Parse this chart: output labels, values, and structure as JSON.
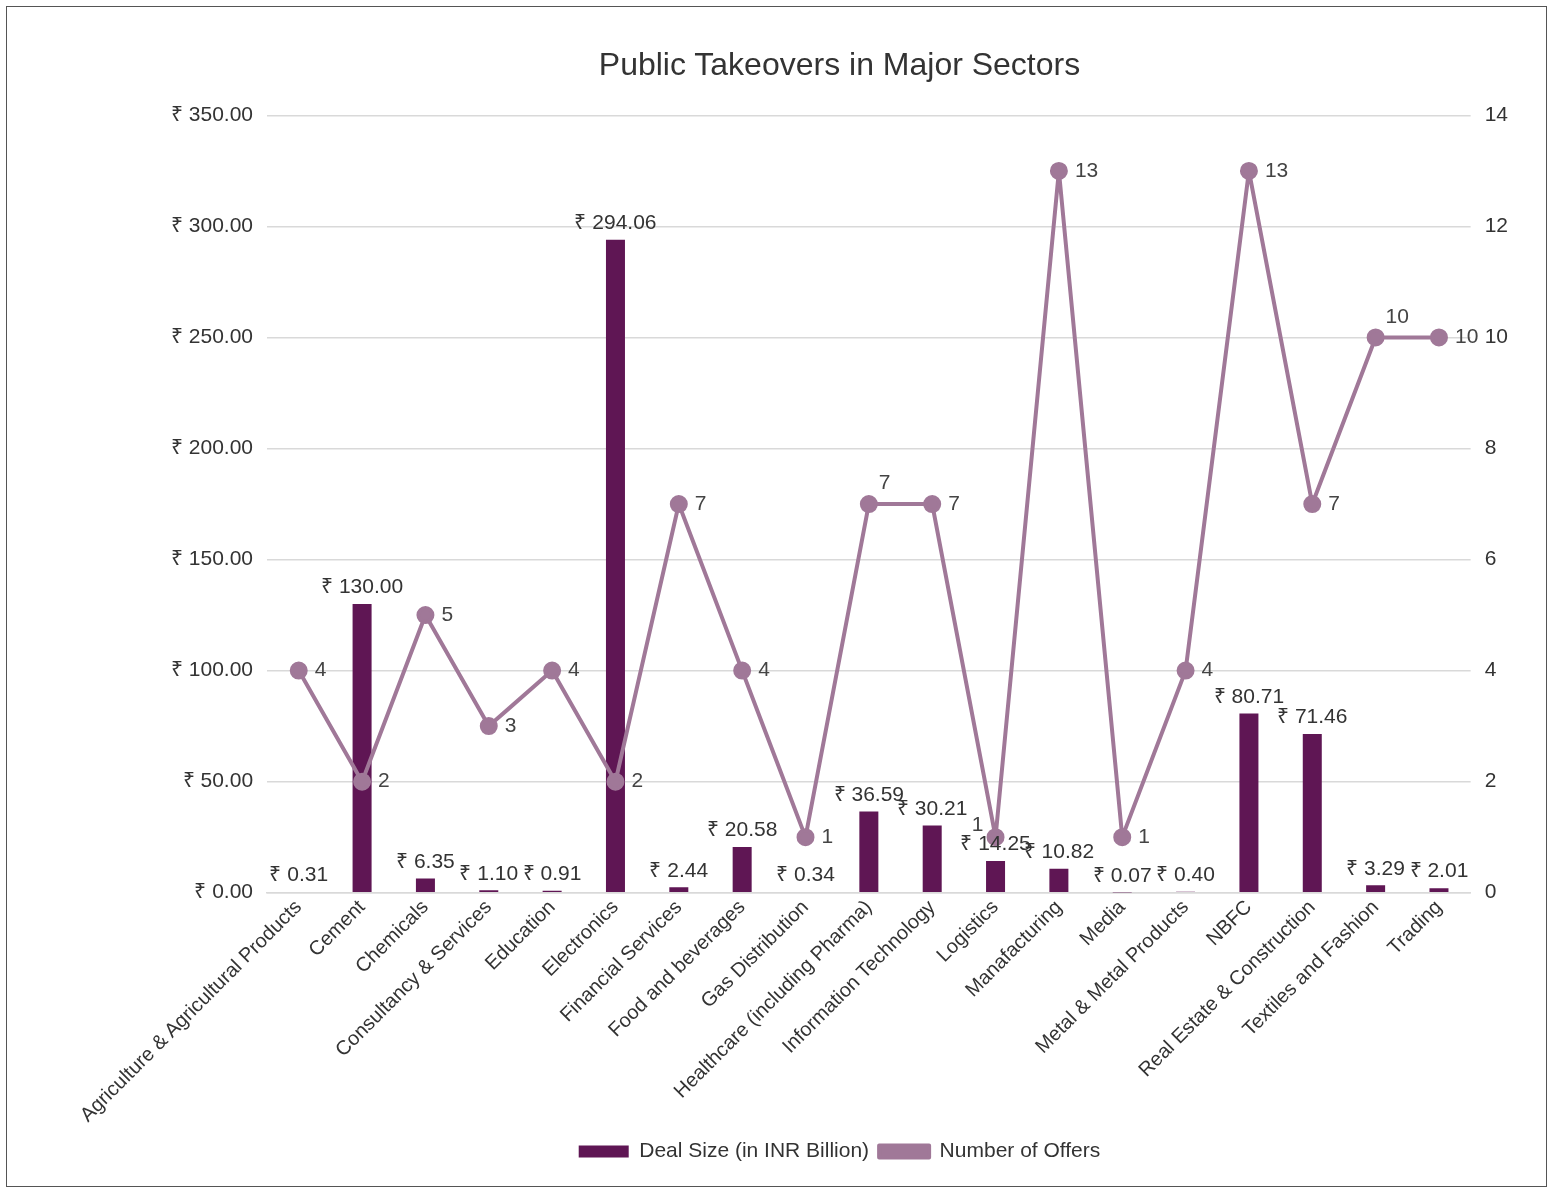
{
  "chart_data": {
    "type": "bar",
    "title": "Public Takeovers in Major Sectors",
    "categories": [
      "Agriculture & Agricultural Products",
      "Cement",
      "Chemicals",
      "Consultancy & Services",
      "Education",
      "Electronics",
      "Financial Services",
      "Food and beverages",
      "Gas Distribution",
      "Healthcare (including Pharma)",
      "Information Technology",
      "Logistics",
      "Manafacturing",
      "Media",
      "Metal & Metal Products",
      "NBFC",
      "Real Estate & Construction",
      "Textiles and Fashion",
      "Trading"
    ],
    "series": [
      {
        "name": "Deal Size (in INR Billion)",
        "color": "#5f1654",
        "values": [
          0.31,
          130.0,
          6.35,
          1.1,
          0.91,
          294.06,
          2.44,
          20.58,
          0.34,
          36.59,
          30.21,
          14.25,
          10.82,
          0.07,
          0.4,
          80.71,
          71.46,
          3.29,
          2.01
        ],
        "value_labels": [
          "₹ 0.31",
          "₹ 130.00",
          "₹ 6.35",
          "₹ 1.10",
          "₹ 0.91",
          "₹ 294.06",
          "₹ 2.44",
          "₹ 20.58",
          "₹ 0.34",
          "₹ 36.59",
          "₹ 30.21",
          "₹ 14.25",
          "₹ 10.82",
          "₹ 0.07",
          "₹ 0.40",
          "₹ 80.71",
          "₹ 71.46",
          "₹ 3.29",
          "₹ 2.01"
        ]
      },
      {
        "type": "line",
        "name": "Number of Offers",
        "color": "#a07898",
        "axis": "y2",
        "marker": "circle",
        "values": [
          4,
          2,
          5,
          3,
          4,
          2,
          7,
          4,
          1,
          7,
          7,
          1,
          13,
          1,
          4,
          13,
          7,
          10,
          10
        ],
        "value_labels": [
          "4",
          "2",
          "5",
          "3",
          "4",
          "2",
          "7",
          "4",
          "1",
          "7",
          "7",
          "1",
          "13",
          "1",
          "4",
          "13",
          "7",
          "10",
          "10"
        ]
      }
    ],
    "ylim": [
      0,
      350
    ],
    "yticks": [
      {
        "value": 0,
        "label": "₹ 0.00"
      },
      {
        "value": 50,
        "label": "₹ 50.00"
      },
      {
        "value": 100,
        "label": "₹ 100.00"
      },
      {
        "value": 150,
        "label": "₹ 150.00"
      },
      {
        "value": 200,
        "label": "₹ 200.00"
      },
      {
        "value": 250,
        "label": "₹ 250.00"
      },
      {
        "value": 300,
        "label": "₹ 300.00"
      },
      {
        "value": 350,
        "label": "₹ 350.00"
      }
    ],
    "y2lim": [
      0,
      14
    ],
    "y2ticks": [
      0,
      2,
      4,
      6,
      8,
      10,
      12,
      14
    ],
    "grid": "y",
    "legend": "bottom"
  }
}
